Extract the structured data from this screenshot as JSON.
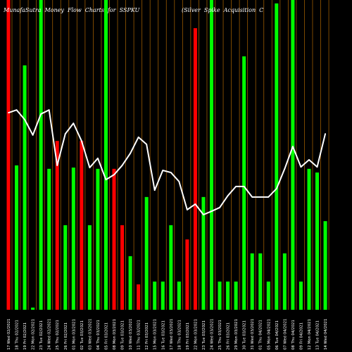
{
  "colors": {
    "background": "#000000",
    "up": "#00ff00",
    "down": "#ff0000",
    "line": "#ffffff",
    "grid": "#9a5a00",
    "text": "#ffffff"
  },
  "chart_data": {
    "type": "bar",
    "title": "MunafaSutra Money Flow Charts for SSPKU",
    "subtitle": "(Silver Spike Acquisition C",
    "x": [
      "17 Wed 02/2021",
      "18 Thu 02/2021",
      "19 Fri 02/2021",
      "22 Mon 02/2021",
      "23 Tue 02/2021",
      "24 Wed 02/2021",
      "25 Thu 02/2021",
      "26 Fri 02/2021",
      "01 Mon 03/2021",
      "02 Tue 03/2021",
      "03 Wed 03/2021",
      "04 Thu 03/2021",
      "05 Fri 03/2021",
      "08 Mon 03/2021",
      "09 Tue 03/2021",
      "10 Wed 03/2021",
      "11 Thu 03/2021",
      "12 Fri 03/2021",
      "15 Mon 03/2021",
      "16 Tue 03/2021",
      "17 Wed 03/2021",
      "18 Thu 03/2021",
      "19 Fri 03/2021",
      "22 Mon 03/2021",
      "23 Tue 03/2021",
      "24 Wed 03/2021",
      "25 Thu 03/2021",
      "26 Fri 03/2021",
      "29 Mon 03/2021",
      "30 Tue 03/2021",
      "31 Wed 03/2021",
      "01 Thu 04/2021",
      "05 Mon 04/2021",
      "06 Tue 04/2021",
      "07 Wed 04/2021",
      "08 Thu 04/2021",
      "09 Fri 04/2021",
      "12 Mon 04/2021",
      "13 Tue 04/2021",
      "14 Wed 04/2021"
    ],
    "series": [
      {
        "type": "bar",
        "values": [
          100,
          46.6,
          78.9,
          0.7,
          100,
          45.5,
          54.5,
          27.3,
          45.9,
          54.5,
          27.3,
          45.5,
          100,
          45.5,
          27.3,
          17.3,
          8.2,
          36.4,
          9.1,
          9.1,
          27.3,
          9.1,
          22.7,
          90.9,
          36.4,
          100,
          9.1,
          9.1,
          9.1,
          81.8,
          18.2,
          18.2,
          9.1,
          98.9,
          18.2,
          100,
          9.1,
          45.5,
          44.3,
          28.6
        ],
        "colors": [
          "#ff0000",
          "#00ff00",
          "#00ff00",
          "#00ff00",
          "#00ff00",
          "#00ff00",
          "#ff0000",
          "#00ff00",
          "#00ff00",
          "#ff0000",
          "#00ff00",
          "#00ff00",
          "#00ff00",
          "#ff0000",
          "#ff0000",
          "#00ff00",
          "#ff0000",
          "#00ff00",
          "#00ff00",
          "#00ff00",
          "#00ff00",
          "#00ff00",
          "#ff0000",
          "#ff0000",
          "#00ff00",
          "#00ff00",
          "#00ff00",
          "#00ff00",
          "#00ff00",
          "#00ff00",
          "#00ff00",
          "#00ff00",
          "#00ff00",
          "#00ff00",
          "#00ff00",
          "#00ff00",
          "#00ff00",
          "#00ff00",
          "#00ff00",
          "#00ff00"
        ]
      },
      {
        "type": "line",
        "values": [
          63.6,
          64.5,
          61.4,
          56.4,
          63.2,
          64.5,
          46.6,
          56.8,
          60.2,
          54.5,
          45.9,
          48.9,
          42.0,
          43.6,
          46.6,
          50.5,
          55.7,
          53.4,
          38.6,
          45.0,
          44.3,
          41.4,
          32.3,
          34.1,
          30.7,
          31.8,
          33.0,
          36.8,
          39.8,
          39.8,
          36.4,
          36.4,
          36.4,
          39.1,
          45.5,
          52.7,
          46.1,
          48.4,
          46.1,
          56.8
        ]
      }
    ],
    "ylim": [
      0,
      100
    ],
    "grid": true
  }
}
